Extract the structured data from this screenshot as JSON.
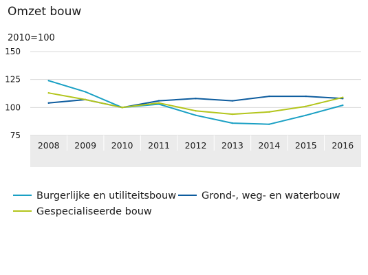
{
  "chart_data": {
    "type": "line",
    "title": "Omzet bouw",
    "subtitle": "2010=100",
    "xlabel": "",
    "ylabel": "",
    "ylim": [
      75,
      150
    ],
    "yticks": [
      75,
      100,
      125,
      150
    ],
    "categories": [
      "2008",
      "2009",
      "2010",
      "2011",
      "2012",
      "2013",
      "2014",
      "2015",
      "2016"
    ],
    "grid": "horizontal",
    "legend_position": "bottom",
    "series": [
      {
        "name": "Burgerlijke en utiliteitsbouw",
        "color": "#1aa0c4",
        "values": [
          124,
          114,
          100,
          103,
          93,
          86,
          85,
          93,
          102
        ]
      },
      {
        "name": "Grond-, weg- en waterbouw",
        "color": "#0d5c9e",
        "values": [
          104,
          107,
          100,
          106,
          108,
          106,
          110,
          110,
          108
        ]
      },
      {
        "name": "Gespecialiseerde bouw",
        "color": "#b3c51c",
        "values": [
          113,
          107,
          100,
          104,
          97,
          94,
          96,
          101,
          109
        ]
      }
    ]
  }
}
